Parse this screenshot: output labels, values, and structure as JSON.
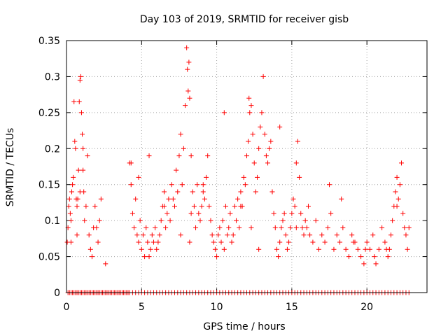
{
  "chart_data": {
    "type": "scatter",
    "title": "Day 103 of 2019, SRMTID for receiver gisb",
    "xlabel": "GPS time / hours",
    "ylabel": "SRMTID / TECUs",
    "xlim": [
      0,
      24
    ],
    "ylim": [
      0,
      0.35
    ],
    "x_ticks": [
      0,
      5,
      10,
      15,
      20
    ],
    "x_tick_labels": [
      "0",
      "5",
      "10",
      "15",
      "20"
    ],
    "y_ticks": [
      0,
      0.05,
      0.1,
      0.15,
      0.2,
      0.25,
      0.3,
      0.35
    ],
    "y_tick_labels": [
      "0",
      "0.05",
      "0.1",
      "0.15",
      "0.2",
      "0.25",
      "0.3",
      "0.35"
    ],
    "grid": true,
    "marker": "+",
    "color": "#ff0000",
    "series": [
      {
        "name": "SRMTID",
        "x": [
          0.05,
          0.1,
          0.15,
          0.2,
          0.25,
          0.3,
          0.35,
          0.4,
          0.45,
          0.5,
          0.55,
          0.6,
          0.65,
          0.7,
          0.75,
          0.8,
          0.85,
          0.9,
          0.95,
          1.0,
          1.05,
          1.1,
          1.15,
          1.2,
          1.3,
          1.4,
          1.5,
          1.6,
          1.7,
          1.8,
          1.9,
          2.0,
          2.1,
          2.2,
          2.3,
          2.6,
          4.2,
          4.3,
          4.4,
          4.5,
          4.6,
          4.7,
          4.8,
          4.9,
          5.0,
          5.1,
          5.2,
          5.3,
          5.4,
          5.5,
          5.6,
          5.7,
          5.8,
          5.9,
          6.0,
          6.1,
          6.2,
          6.3,
          6.4,
          6.5,
          6.6,
          6.7,
          6.8,
          6.9,
          7.0,
          7.1,
          7.2,
          7.3,
          7.4,
          7.5,
          7.6,
          7.7,
          7.8,
          7.9,
          8.0,
          8.05,
          8.1,
          8.15,
          8.2,
          8.3,
          8.4,
          8.5,
          8.6,
          8.7,
          8.8,
          8.9,
          9.0,
          9.1,
          9.2,
          9.3,
          9.4,
          9.5,
          9.6,
          9.7,
          9.8,
          9.9,
          10.0,
          10.1,
          10.2,
          10.3,
          10.4,
          10.5,
          10.6,
          10.7,
          10.8,
          10.9,
          11.0,
          11.1,
          11.2,
          11.3,
          11.4,
          11.5,
          11.6,
          11.7,
          11.8,
          11.9,
          12.0,
          12.1,
          12.15,
          12.2,
          12.3,
          12.4,
          12.5,
          12.6,
          12.7,
          12.8,
          12.9,
          13.0,
          13.1,
          13.2,
          13.3,
          13.4,
          13.5,
          13.6,
          13.7,
          13.8,
          13.9,
          14.0,
          14.1,
          14.2,
          14.3,
          14.4,
          14.5,
          14.6,
          14.7,
          14.8,
          14.9,
          15.0,
          15.1,
          15.2,
          15.3,
          15.4,
          15.5,
          15.6,
          15.7,
          15.8,
          15.9,
          16.0,
          16.2,
          16.4,
          16.6,
          16.8,
          17.0,
          17.2,
          17.4,
          17.6,
          17.8,
          18.0,
          18.2,
          18.4,
          18.6,
          18.8,
          19.0,
          19.2,
          19.4,
          19.6,
          19.8,
          20.0,
          20.2,
          20.4,
          20.6,
          20.8,
          21.0,
          21.2,
          21.4,
          21.5,
          21.6,
          21.7,
          21.8,
          21.9,
          22.0,
          22.1,
          22.2,
          22.3,
          22.4,
          22.5,
          22.6,
          22.7,
          22.8,
          0.3,
          0.7,
          0.9,
          1.1,
          4.3,
          4.8,
          5.5,
          6.5,
          7.6,
          8.2,
          8.3,
          9.1,
          10.5,
          11.6,
          12.3,
          12.8,
          13.7,
          14.2,
          15.3,
          16.1,
          17.5,
          18.3,
          19.1,
          19.9,
          20.5,
          21.3,
          22.0
        ],
        "y": [
          0.07,
          0.09,
          0.12,
          0.13,
          0.11,
          0.1,
          0.14,
          0.15,
          0.16,
          0.265,
          0.21,
          0.2,
          0.13,
          0.12,
          0.13,
          0.17,
          0.265,
          0.295,
          0.3,
          0.25,
          0.22,
          0.17,
          0.14,
          0.1,
          0.12,
          0.19,
          0.08,
          0.06,
          0.05,
          0.09,
          0.12,
          0.09,
          0.07,
          0.1,
          0.13,
          0.04,
          0.18,
          0.15,
          0.11,
          0.09,
          0.13,
          0.08,
          0.07,
          0.1,
          0.06,
          0.08,
          0.05,
          0.09,
          0.07,
          0.05,
          0.06,
          0.08,
          0.07,
          0.09,
          0.06,
          0.07,
          0.08,
          0.1,
          0.12,
          0.14,
          0.09,
          0.11,
          0.13,
          0.1,
          0.15,
          0.13,
          0.12,
          0.17,
          0.14,
          0.19,
          0.22,
          0.15,
          0.2,
          0.26,
          0.34,
          0.31,
          0.28,
          0.32,
          0.27,
          0.19,
          0.14,
          0.12,
          0.09,
          0.15,
          0.11,
          0.1,
          0.12,
          0.15,
          0.13,
          0.16,
          0.19,
          0.12,
          0.1,
          0.08,
          0.07,
          0.06,
          0.05,
          0.08,
          0.09,
          0.07,
          0.1,
          0.06,
          0.12,
          0.08,
          0.09,
          0.11,
          0.07,
          0.08,
          0.12,
          0.1,
          0.13,
          0.09,
          0.14,
          0.12,
          0.16,
          0.15,
          0.19,
          0.21,
          0.27,
          0.25,
          0.26,
          0.22,
          0.18,
          0.14,
          0.16,
          0.2,
          0.23,
          0.25,
          0.3,
          0.22,
          0.19,
          0.18,
          0.2,
          0.21,
          0.14,
          0.11,
          0.09,
          0.06,
          0.05,
          0.07,
          0.09,
          0.1,
          0.11,
          0.08,
          0.06,
          0.07,
          0.09,
          0.11,
          0.13,
          0.12,
          0.18,
          0.21,
          0.16,
          0.11,
          0.09,
          0.08,
          0.1,
          0.09,
          0.08,
          0.07,
          0.1,
          0.06,
          0.08,
          0.07,
          0.09,
          0.11,
          0.06,
          0.08,
          0.07,
          0.09,
          0.06,
          0.05,
          0.08,
          0.07,
          0.06,
          0.05,
          0.04,
          0.07,
          0.06,
          0.08,
          0.04,
          0.06,
          0.09,
          0.07,
          0.05,
          0.06,
          0.08,
          0.1,
          0.12,
          0.14,
          0.16,
          0.13,
          0.15,
          0.18,
          0.11,
          0.09,
          0.08,
          0.06,
          0.09,
          0.07,
          0.08,
          0.14,
          0.2,
          0.18,
          0.16,
          0.19,
          0.12,
          0.08,
          0.07,
          0.11,
          0.14,
          0.25,
          0.12,
          0.09,
          0.06,
          0.14,
          0.23,
          0.09,
          0.12,
          0.15,
          0.13,
          0.07,
          0.06,
          0.05,
          0.06,
          0.12
        ],
        "zero_hours": [
          0.1,
          0.2,
          0.3,
          0.4,
          0.5,
          0.6,
          0.7,
          0.8,
          0.9,
          1.0,
          1.1,
          1.2,
          1.3,
          1.4,
          1.5,
          1.6,
          1.7,
          1.8,
          1.9,
          2.0,
          2.1,
          2.2,
          2.3,
          2.4,
          2.5,
          2.6,
          2.7,
          2.8,
          2.9,
          3.0,
          3.1,
          3.2,
          3.3,
          3.4,
          3.5,
          3.6,
          3.7,
          3.8,
          3.9,
          4.0,
          4.1,
          4.2,
          4.4,
          4.6,
          4.8,
          5.0,
          5.2,
          5.4,
          5.6,
          5.8,
          6.0,
          6.2,
          6.4,
          6.6,
          6.8,
          7.0,
          7.2,
          7.4,
          7.6,
          7.8,
          8.0,
          8.2,
          8.4,
          8.6,
          8.8,
          9.0,
          9.2,
          9.4,
          9.6,
          9.8,
          10.0,
          10.2,
          10.4,
          10.6,
          10.8,
          11.0,
          11.2,
          11.4,
          11.6,
          11.8,
          12.0,
          12.2,
          12.4,
          12.6,
          12.8,
          13.0,
          13.2,
          13.4,
          13.6,
          13.8,
          14.0,
          14.2,
          14.4,
          14.6,
          14.8,
          15.0,
          15.2,
          15.4,
          15.6,
          15.8,
          16.0,
          16.2,
          16.4,
          16.6,
          16.8,
          17.0,
          17.2,
          17.4,
          17.6,
          17.8,
          18.0,
          18.2,
          18.4,
          18.6,
          18.8,
          19.0,
          19.2,
          19.4,
          19.6,
          19.8,
          20.0,
          20.2,
          20.4,
          20.6,
          20.8,
          21.0,
          21.2,
          21.4,
          21.6,
          21.8,
          22.0,
          22.2,
          22.4,
          22.6,
          22.8
        ]
      }
    ]
  }
}
